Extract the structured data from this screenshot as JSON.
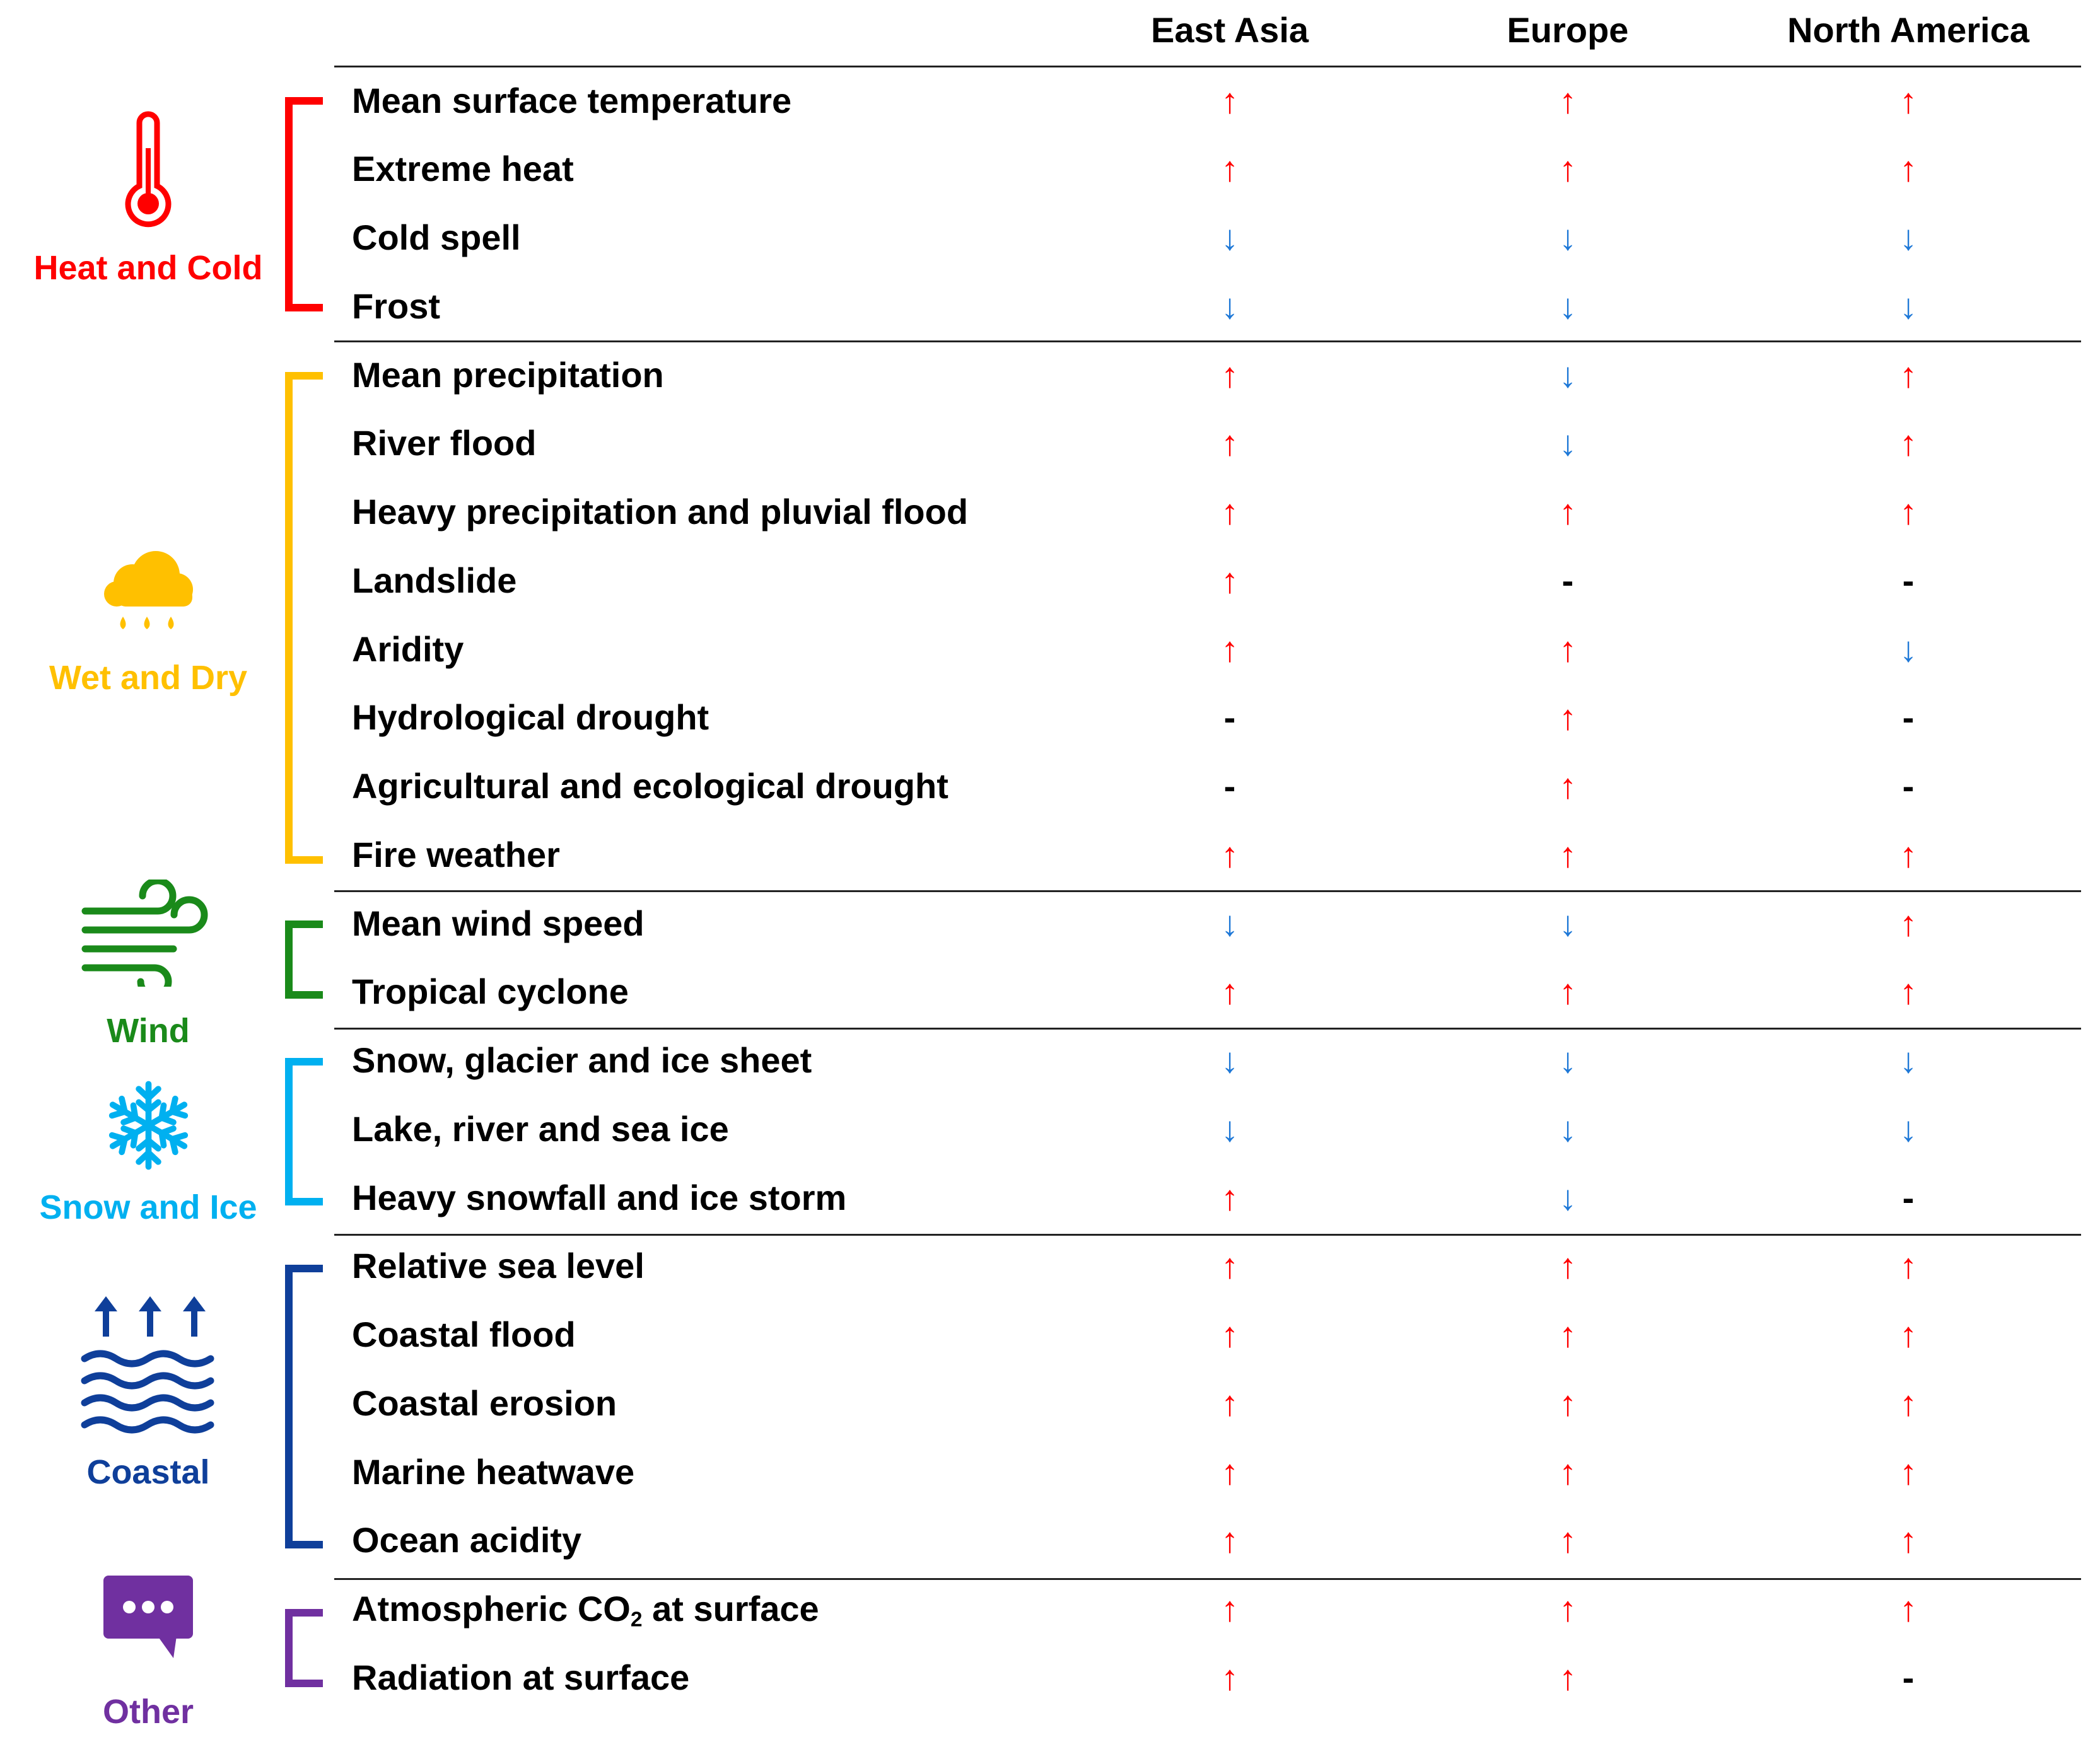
{
  "header": {
    "columns": [
      "East Asia",
      "Europe",
      "North America"
    ]
  },
  "colors": {
    "increase": "#ff0000",
    "decrease": "#1e78d7",
    "heat_and_cold": "#ff0000",
    "wet_and_dry": "#ffc000",
    "wind": "#1a8a1a",
    "snow_and_ice": "#00b0f0",
    "coastal": "#0f3f9a",
    "other": "#7030a0"
  },
  "categories": [
    {
      "name": "Heat and Cold",
      "icon": "thermometer-icon"
    },
    {
      "name": "Wet and Dry",
      "icon": "rain-cloud-icon"
    },
    {
      "name": "Wind",
      "icon": "wind-icon"
    },
    {
      "name": "Snow and Ice",
      "icon": "snowflake-icon"
    },
    {
      "name": "Coastal",
      "icon": "sea-level-rise-icon"
    },
    {
      "name": "Other",
      "icon": "chat-bubble-icon"
    }
  ],
  "rows": [
    {
      "label": "Mean surface temperature",
      "values": [
        "↑",
        "↑",
        "↑"
      ]
    },
    {
      "label": "Extreme heat",
      "values": [
        "↑",
        "↑",
        "↑"
      ]
    },
    {
      "label": "Cold spell",
      "values": [
        "↓",
        "↓",
        "↓"
      ]
    },
    {
      "label": "Frost",
      "values": [
        "↓",
        "↓",
        "↓"
      ]
    },
    {
      "label": "Mean precipitation",
      "values": [
        "↑",
        "↓",
        "↑"
      ]
    },
    {
      "label": "River flood",
      "values": [
        "↑",
        "↓",
        "↑"
      ]
    },
    {
      "label": "Heavy precipitation and pluvial flood",
      "values": [
        "↑",
        "↑",
        "↑"
      ]
    },
    {
      "label": "Landslide",
      "values": [
        "↑",
        "-",
        "-"
      ]
    },
    {
      "label": "Aridity",
      "values": [
        "↑",
        "↑",
        "↓"
      ]
    },
    {
      "label": "Hydrological drought",
      "values": [
        "-",
        "↑",
        "-"
      ]
    },
    {
      "label": "Agricultural and ecological drought",
      "values": [
        "-",
        "↑",
        "-"
      ]
    },
    {
      "label": "Fire weather",
      "values": [
        "↑",
        "↑",
        "↑"
      ]
    },
    {
      "label": "Mean wind speed",
      "values": [
        "↓",
        "↓",
        "↑"
      ]
    },
    {
      "label": "Tropical cyclone",
      "values": [
        "↑",
        "↑",
        "↑"
      ]
    },
    {
      "label": "Snow, glacier and ice sheet",
      "values": [
        "↓",
        "↓",
        "↓"
      ]
    },
    {
      "label": "Lake, river and sea ice",
      "values": [
        "↓",
        "↓",
        "↓"
      ]
    },
    {
      "label": "Heavy snowfall and ice storm",
      "values": [
        "↑",
        "↓",
        "-"
      ]
    },
    {
      "label": "Relative sea level",
      "values": [
        "↑",
        "↑",
        "↑"
      ]
    },
    {
      "label": "Coastal flood",
      "values": [
        "↑",
        "↑",
        "↑"
      ]
    },
    {
      "label": "Coastal erosion",
      "values": [
        "↑",
        "↑",
        "↑"
      ]
    },
    {
      "label": "Marine heatwave",
      "values": [
        "↑",
        "↑",
        "↑"
      ]
    },
    {
      "label": "Ocean acidity",
      "values": [
        "↑",
        "↑",
        "↑"
      ]
    },
    {
      "label": "Atmospheric CO2 at surface",
      "label_main": "Atmospheric CO",
      "label_sub": "2",
      "label_tail": " at surface",
      "values": [
        "↑",
        "↑",
        "↑"
      ]
    },
    {
      "label": "Radiation at surface",
      "values": [
        "↑",
        "↑",
        "-"
      ]
    }
  ]
}
